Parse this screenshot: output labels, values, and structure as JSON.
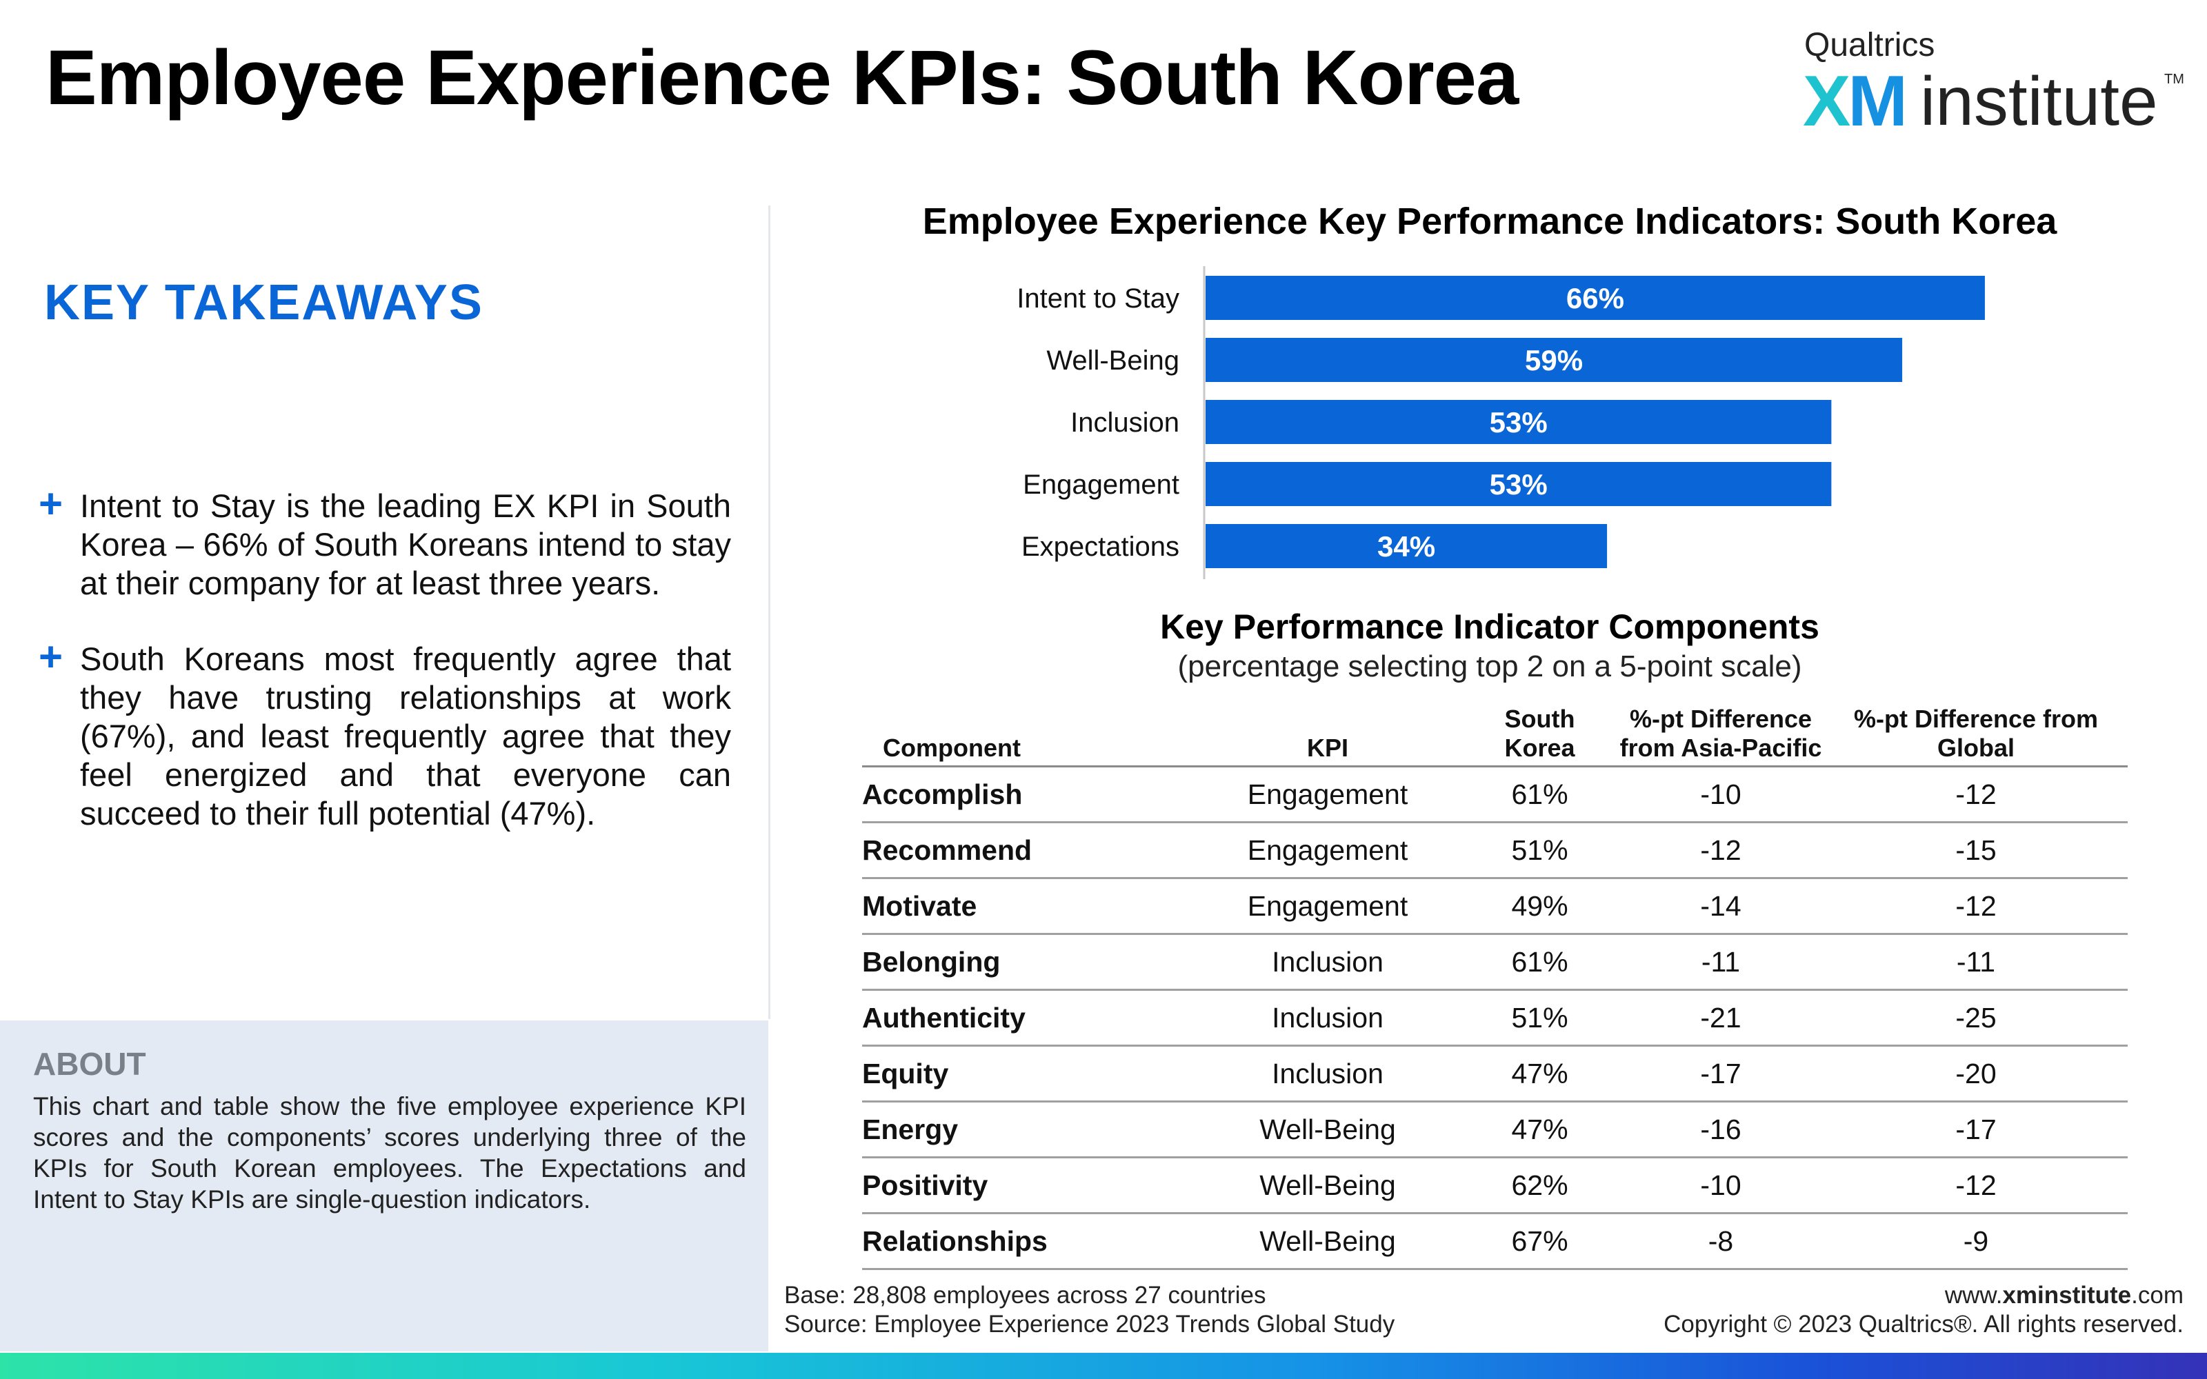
{
  "header": {
    "title": "Employee Experience KPIs: South Korea",
    "logo": {
      "company": "Qualtrics",
      "xm": "XM",
      "institute": "institute",
      "tm": "TM"
    }
  },
  "takeaways": {
    "heading": "KEY TAKEAWAYS",
    "bullets": [
      "Intent to Stay is the leading EX KPI in South Korea – 66% of South Koreans intend to stay at their company for at least three years.",
      "South Koreans most frequently agree that they have trusting relationships at work (67%), and least frequently agree that they feel energized and that everyone can succeed to their full potential (47%)."
    ],
    "bullet_icon": "plus"
  },
  "about": {
    "heading": "ABOUT",
    "text": "This chart and table show the five employee experience KPI scores and the components’ scores underlying three of the KPIs for South Korean employees. The Expectations and Intent to Stay KPIs are single-question indicators."
  },
  "chart_data": {
    "type": "bar",
    "orientation": "horizontal",
    "title": "Employee Experience Key Performance Indicators: South Korea",
    "categories": [
      "Intent to Stay",
      "Well-Being",
      "Inclusion",
      "Engagement",
      "Expectations"
    ],
    "values": [
      66,
      59,
      53,
      53,
      34
    ],
    "value_labels": [
      "66%",
      "59%",
      "53%",
      "53%",
      "34%"
    ],
    "xlim": [
      0,
      100
    ],
    "grid": false,
    "bar_color": "#0a66d6"
  },
  "table": {
    "title": "Key Performance Indicator Components",
    "subtitle": "(percentage selecting top 2 on a 5-point scale)",
    "headers": {
      "component": "Component",
      "kpi": "KPI",
      "value_1": "South",
      "value_2": "Korea",
      "asia_1": "%-pt Difference",
      "asia_2": "from Asia-Pacific",
      "global_1": "%-pt Difference from",
      "global_2": "Global"
    },
    "rows": [
      {
        "component": "Accomplish",
        "kpi": "Engagement",
        "value": "61%",
        "asia": "-10",
        "global": "-12"
      },
      {
        "component": "Recommend",
        "kpi": "Engagement",
        "value": "51%",
        "asia": "-12",
        "global": "-15"
      },
      {
        "component": "Motivate",
        "kpi": "Engagement",
        "value": "49%",
        "asia": "-14",
        "global": "-12"
      },
      {
        "component": "Belonging",
        "kpi": "Inclusion",
        "value": "61%",
        "asia": "-11",
        "global": "-11"
      },
      {
        "component": "Authenticity",
        "kpi": "Inclusion",
        "value": "51%",
        "asia": "-21",
        "global": "-25"
      },
      {
        "component": "Equity",
        "kpi": "Inclusion",
        "value": "47%",
        "asia": "-17",
        "global": "-20"
      },
      {
        "component": "Energy",
        "kpi": "Well-Being",
        "value": "47%",
        "asia": "-16",
        "global": "-17"
      },
      {
        "component": "Positivity",
        "kpi": "Well-Being",
        "value": "62%",
        "asia": "-10",
        "global": "-12"
      },
      {
        "component": "Relationships",
        "kpi": "Well-Being",
        "value": "67%",
        "asia": "-8",
        "global": "-9"
      }
    ]
  },
  "footer": {
    "base": "Base: 28,808 employees across 27 countries",
    "source": "Source: Employee Experience 2023 Trends Global Study",
    "url_prefix": "www.",
    "url_bold": "xminstitute",
    "url_suffix": ".com",
    "copyright": "Copyright © 2023 Qualtrics®. All rights reserved."
  },
  "colors": {
    "accent": "#0a66d6",
    "about_bg": "#e3eaf3",
    "bottom_bar": [
      "#2de3a8",
      "#18c7d6",
      "#1691e6",
      "#1a52d8",
      "#3432b8"
    ]
  }
}
